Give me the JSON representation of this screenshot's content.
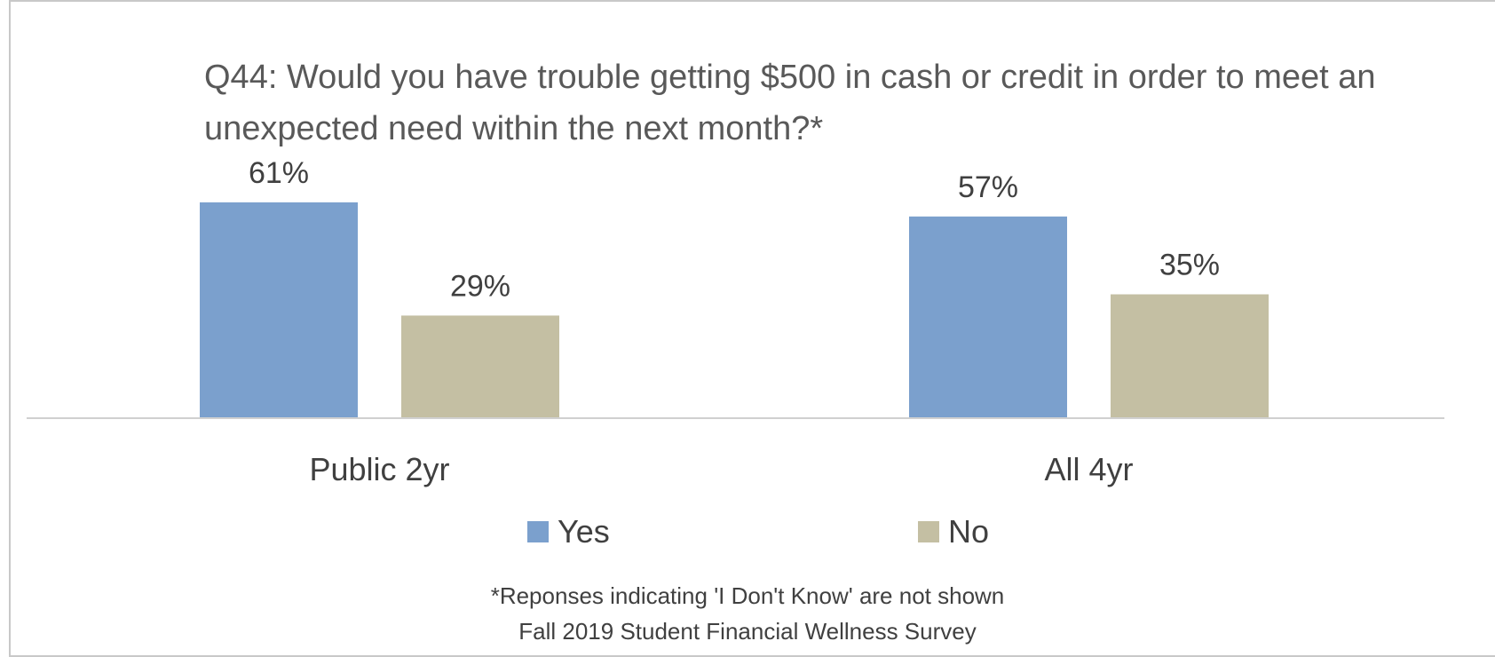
{
  "chart_data": {
    "type": "bar",
    "title": "Q44: Would you have trouble getting $500 in cash or credit in order to meet an unexpected need within the next month?*",
    "categories": [
      "Public 2yr",
      "All 4yr"
    ],
    "series": [
      {
        "name": "Yes",
        "values": [
          61,
          57
        ],
        "color": "#7ba0cd"
      },
      {
        "name": "No",
        "values": [
          29,
          35
        ],
        "color": "#c4bfa3"
      }
    ],
    "value_labels": [
      [
        "61%",
        "57%"
      ],
      [
        "29%",
        "35%"
      ]
    ],
    "unit": "%",
    "ylim": [
      0,
      68
    ],
    "grid": false,
    "legend_position": "bottom",
    "footnote": "*Reponses indicating 'I Don't Know' are not shown",
    "source": "Fall 2019 Student Financial Wellness Survey"
  }
}
